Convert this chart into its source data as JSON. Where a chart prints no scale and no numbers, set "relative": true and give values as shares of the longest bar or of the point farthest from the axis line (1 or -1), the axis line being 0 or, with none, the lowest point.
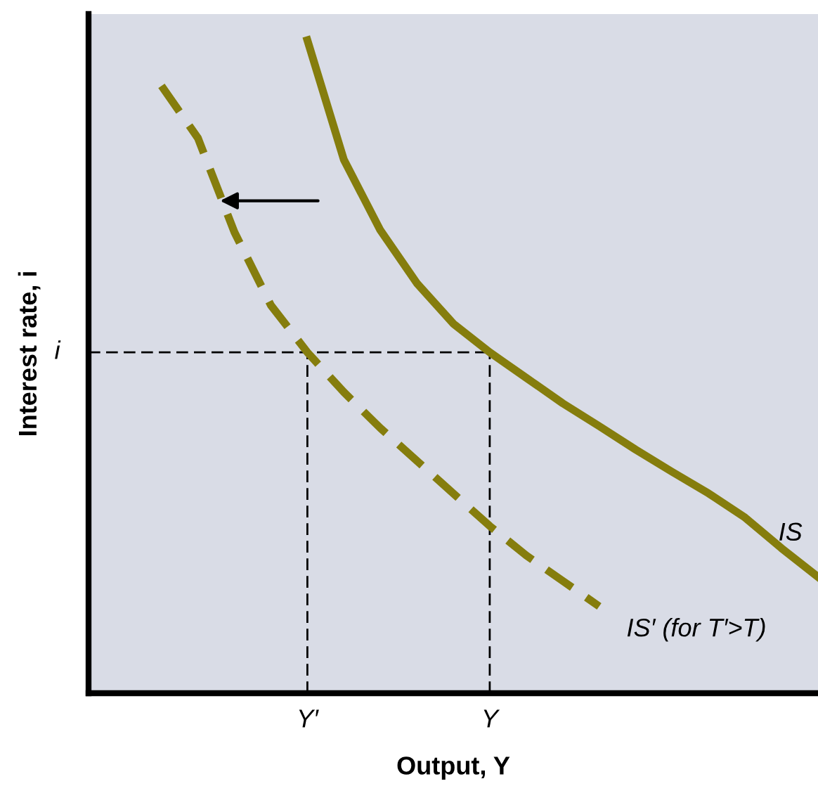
{
  "chart_data": {
    "type": "line",
    "relative": true,
    "xlabel": "Output, Y",
    "ylabel": "Interest rate, i",
    "categories": [
      null,
      null,
      null,
      null,
      null,
      null,
      "Y′",
      null,
      null,
      null,
      null,
      "Y",
      null,
      null,
      null,
      null,
      null,
      null,
      null,
      null,
      null
    ],
    "grid": false,
    "legend": false,
    "marker": "none",
    "ref_lines": [
      {
        "axis": "y",
        "value": 0.522,
        "label": "i",
        "color": "#000000",
        "line_style": "dashed"
      },
      {
        "axis": "x",
        "value": "Y′",
        "color": "#000000",
        "line_style": "dashed"
      },
      {
        "axis": "x",
        "value": "Y",
        "color": "#000000",
        "line_style": "dashed"
      }
    ],
    "series": [
      {
        "name": "IS",
        "color": "#857d0d",
        "line_style": "solid",
        "values": [
          null,
          null,
          null,
          null,
          null,
          null,
          1.0,
          0.817,
          0.709,
          0.628,
          0.566,
          0.522,
          0.483,
          0.444,
          0.409,
          0.373,
          0.339,
          0.306,
          0.269,
          0.222,
          0.178
        ]
      },
      {
        "name": "IS′ (for T′>T)",
        "color": "#857d0d",
        "line_style": "dashed",
        "values": [
          null,
          null,
          0.93,
          0.85,
          0.706,
          0.594,
          0.522,
          0.461,
          0.406,
          0.356,
          0.306,
          0.256,
          0.211,
          0.172,
          0.133,
          null,
          null,
          null,
          null,
          null,
          null
        ]
      }
    ]
  }
}
